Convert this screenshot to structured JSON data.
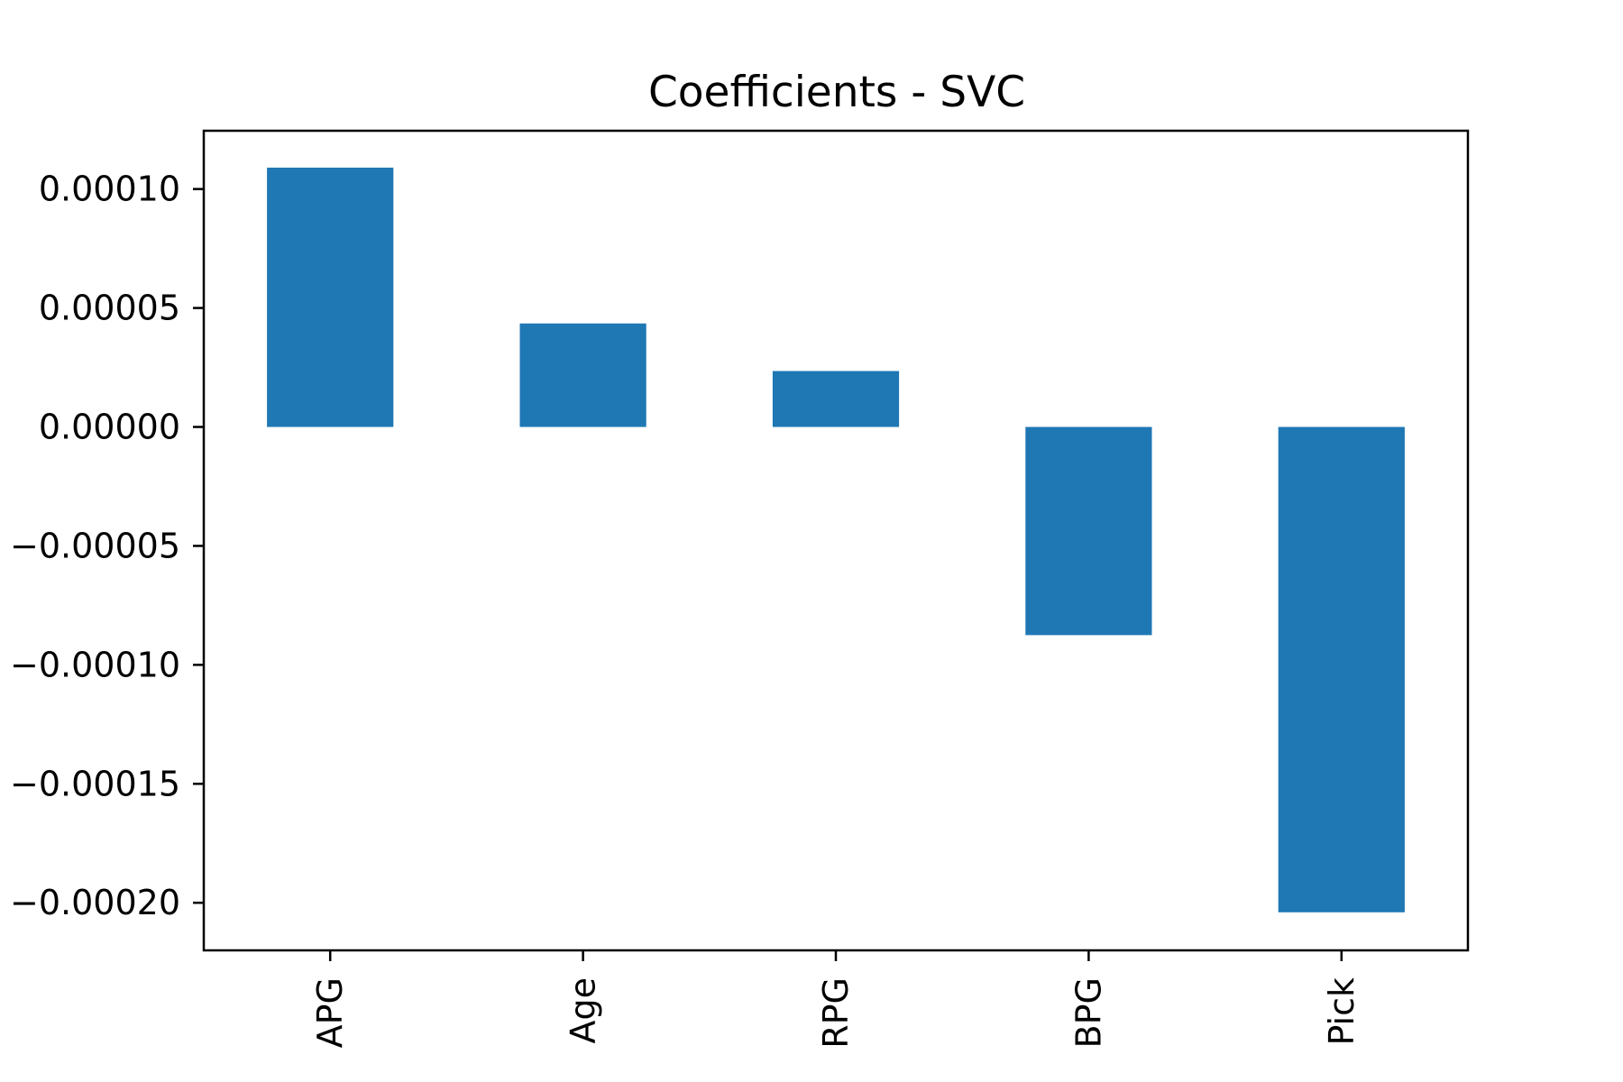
{
  "chart_data": {
    "type": "bar",
    "title": "Coefficients - SVC",
    "xlabel": "",
    "ylabel": "",
    "categories": [
      "APG",
      "Age",
      "RPG",
      "BPG",
      "Pick"
    ],
    "values": [
      0.000109,
      4.35e-05,
      2.35e-05,
      -8.75e-05,
      -0.000204
    ],
    "ylim": [
      -0.00022,
      0.0001245
    ],
    "yticks": [
      0.0001,
      5e-05,
      0.0,
      -5e-05,
      -0.0001,
      -0.00015,
      -0.0002
    ],
    "ytick_labels": [
      "0.00010",
      "0.00005",
      "0.00000",
      "−0.00005",
      "−0.00010",
      "−0.00015",
      "−0.00020"
    ],
    "grid": false,
    "legend": "none",
    "bar_color": "#1f77b4"
  }
}
